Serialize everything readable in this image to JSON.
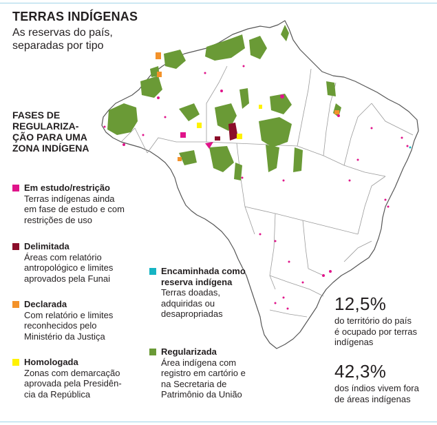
{
  "header": {
    "title": "TERRAS INDÍGENAS",
    "subtitle_line1": "As reservas do país,",
    "subtitle_line2": "separadas por tipo"
  },
  "legend": {
    "title_line1": "FASES DE",
    "title_line2": "REGULARIZA-",
    "title_line3": "ÇÃO PARA UMA",
    "title_line4": "ZONA INDÍGENA",
    "items": [
      {
        "label": "Em estudo/restrição",
        "color": "#e0148a",
        "desc": [
          "Terras indígenas ainda",
          "em fase de estudo e com",
          "restrições de uso"
        ]
      },
      {
        "label": "Delimitada",
        "color": "#8b0d2a",
        "desc": [
          "Áreas com relatório",
          "antropológico e limites",
          "aprovados pela Funai"
        ]
      },
      {
        "label": "Declarada",
        "color": "#f3922a",
        "desc": [
          "Com relatório e limites",
          "reconhecidos pelo",
          "Ministério da Justiça"
        ]
      },
      {
        "label": "Homologada",
        "color": "#fff200",
        "desc": [
          "Zonas com demarcação",
          "aprovada pela Presidên-",
          "cia da República"
        ]
      },
      {
        "label_line1": "Encaminhada como",
        "label_line2": "reserva indígena",
        "color": "#16b4c3",
        "desc": [
          "Terras doadas,",
          "adquiridas ou",
          "desapropriadas"
        ]
      },
      {
        "label": "Regularizada",
        "color": "#6a9a36",
        "desc": [
          "Área indígena com",
          "registro em cartório e",
          "na Secretaria de",
          "Patrimônio da União"
        ]
      }
    ]
  },
  "stats": [
    {
      "value": "12,5%",
      "desc": [
        "do território do país",
        "é ocupado por terras",
        "indígenas"
      ]
    },
    {
      "value": "42,3%",
      "desc": [
        "dos índios vivem fora",
        "de áreas indígenas"
      ]
    }
  ],
  "map": {
    "outline_color": "#555555",
    "state_border_color": "#9a9a9a",
    "regularizada_color": "#6a9a36"
  }
}
